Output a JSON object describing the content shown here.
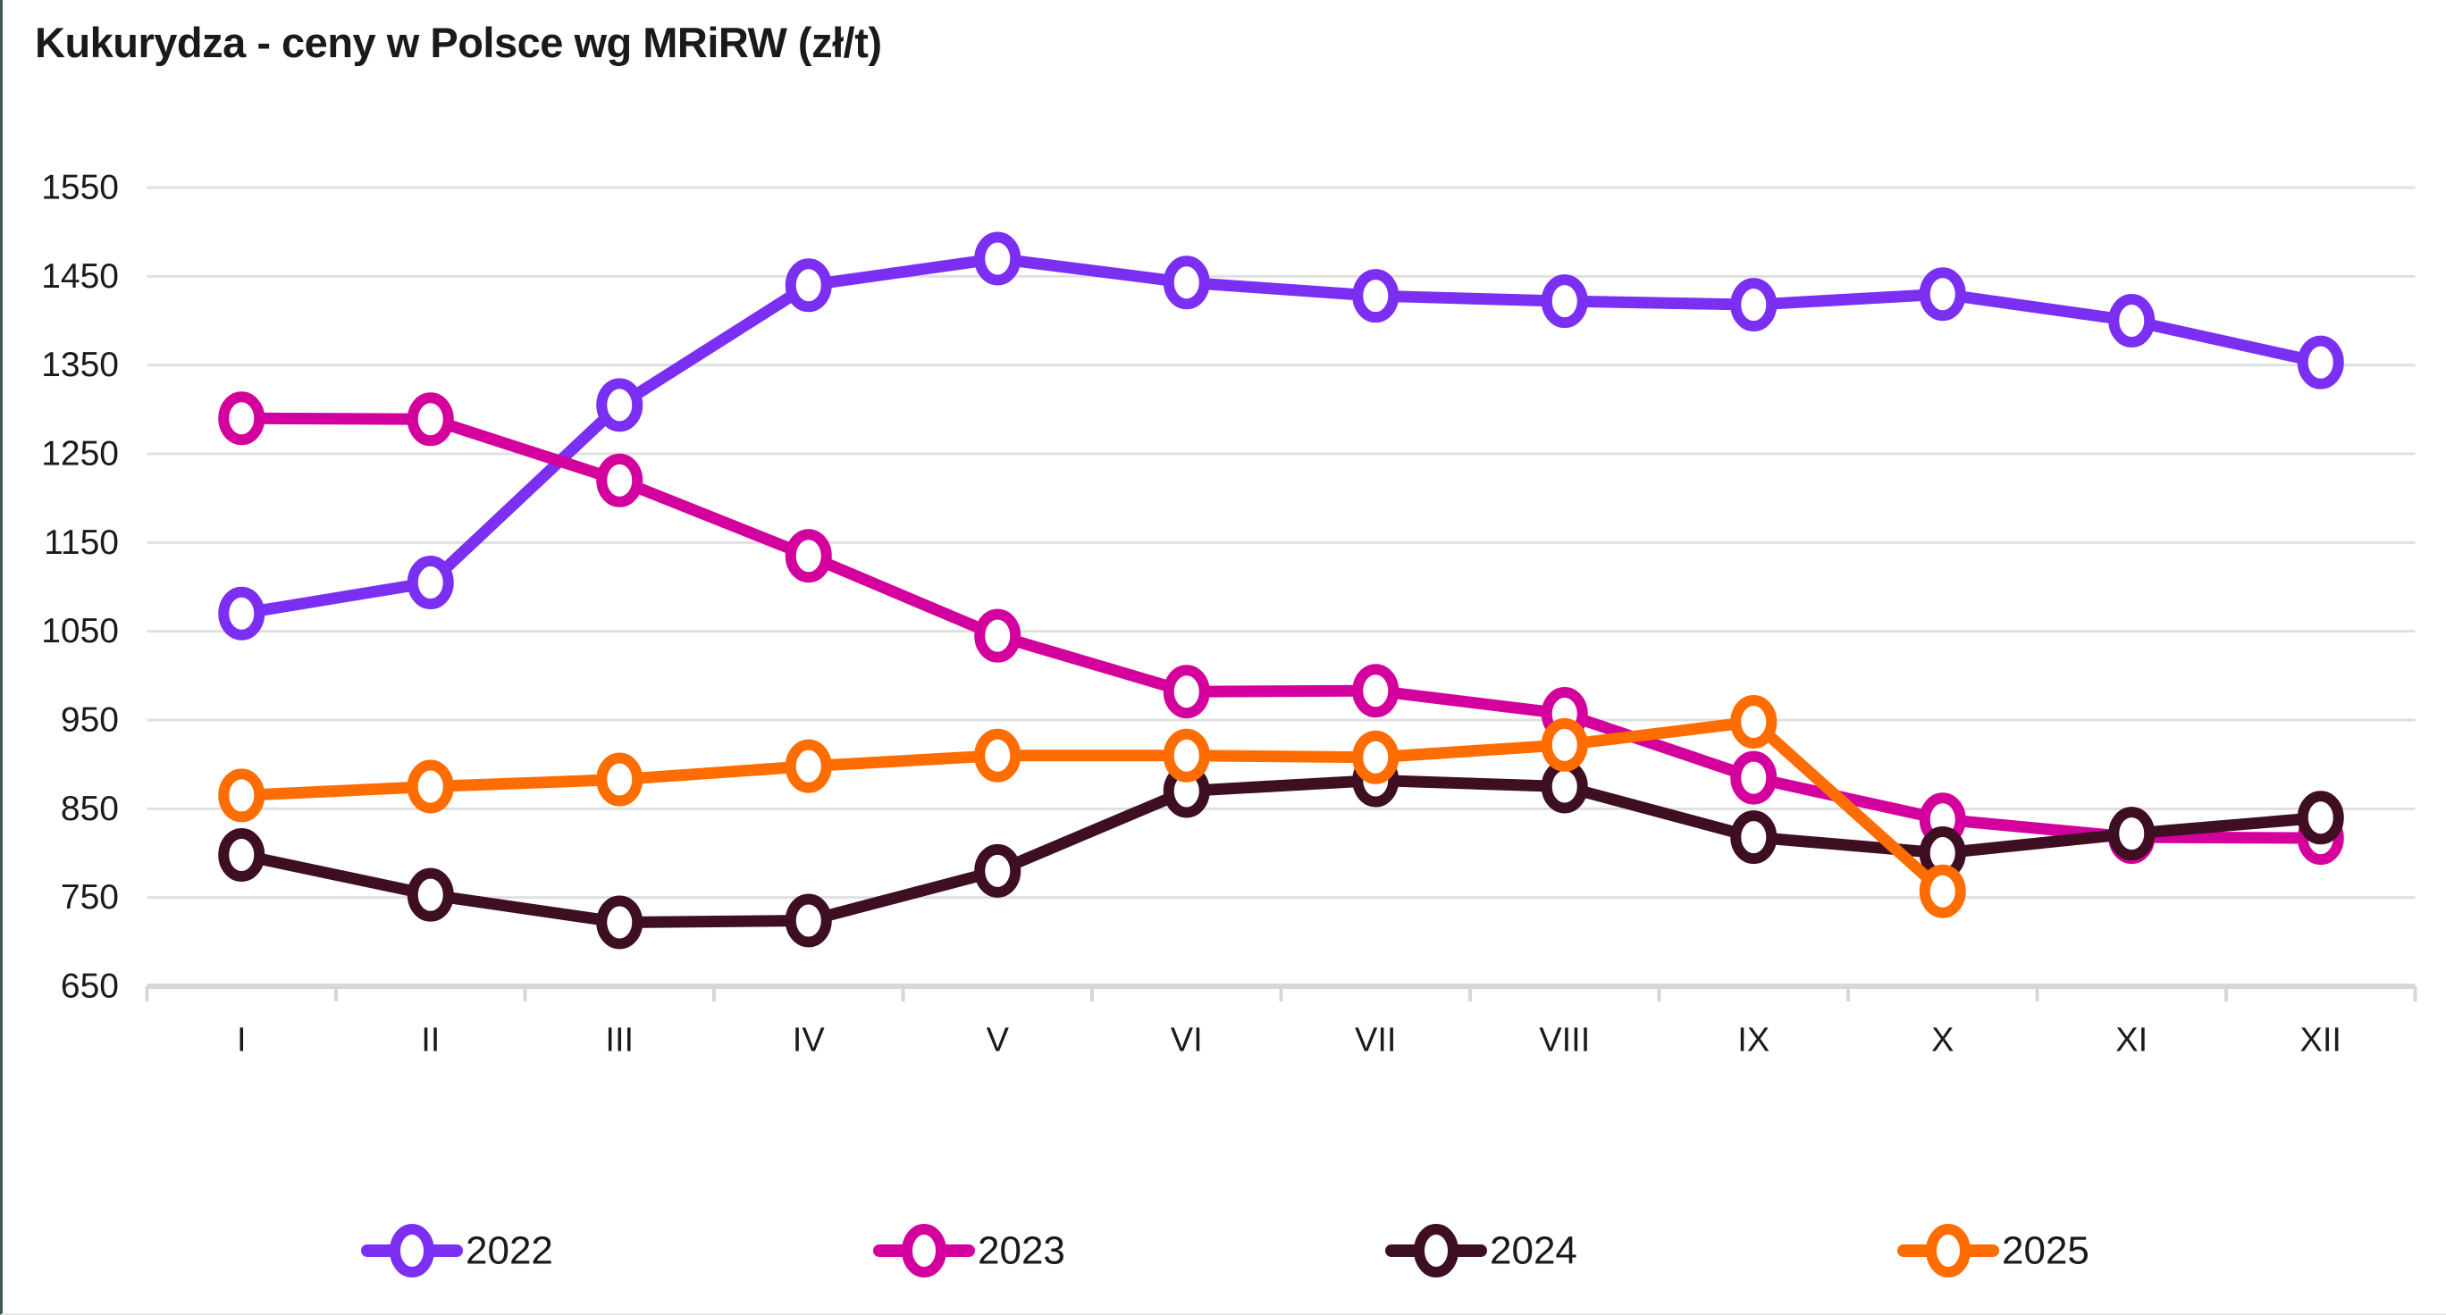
{
  "title": "Kukurydza - ceny w Polsce wg MRiRW (zł/t)",
  "colors": {
    "text": "#1a1a1a",
    "gridline": "#e0e0e0",
    "axis": "#d7d7d7",
    "background": "#ffffff",
    "edge_accent": "#3f5d4b"
  },
  "chart_data": {
    "type": "line",
    "title": "Kukurydza - ceny w Polsce wg MRiRW (zł/t)",
    "xlabel": "",
    "ylabel": "",
    "categories": [
      "I",
      "II",
      "III",
      "IV",
      "V",
      "VI",
      "VII",
      "VIII",
      "IX",
      "X",
      "XI",
      "XII"
    ],
    "y_ticks": [
      650,
      750,
      850,
      950,
      1050,
      1150,
      1250,
      1350,
      1450,
      1550
    ],
    "ylim": [
      650,
      1550
    ],
    "grid": true,
    "legend_position": "bottom",
    "series": [
      {
        "name": "2022",
        "color": "#7b2ff2",
        "values": [
          1070,
          1105,
          1305,
          1440,
          1470,
          1443,
          1428,
          1422,
          1418,
          1430,
          1400,
          1353
        ]
      },
      {
        "name": "2023",
        "color": "#d4009d",
        "values": [
          1290,
          1289,
          1220,
          1135,
          1045,
          982,
          983,
          957,
          885,
          838,
          818,
          817
        ]
      },
      {
        "name": "2024",
        "color": "#3e0e22",
        "values": [
          798,
          753,
          722,
          724,
          780,
          870,
          882,
          875,
          818,
          800,
          822,
          840
        ]
      },
      {
        "name": "2025",
        "color": "#ff6c00",
        "values": [
          865,
          875,
          883,
          898,
          910,
          910,
          908,
          922,
          948,
          757,
          null,
          null
        ]
      }
    ]
  }
}
